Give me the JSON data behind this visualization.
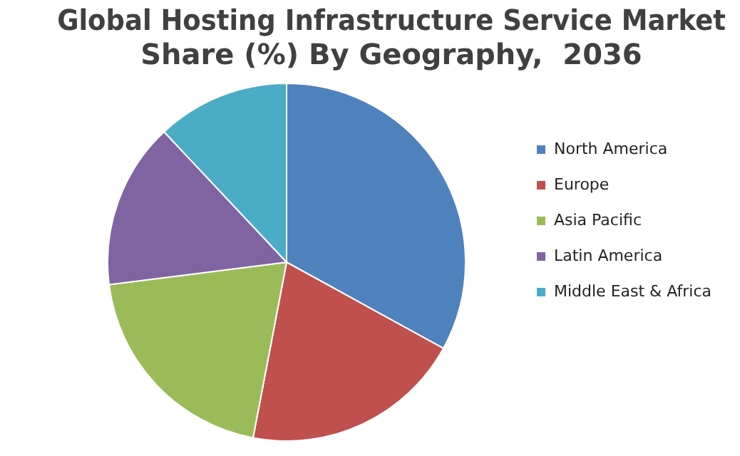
{
  "chart_data": {
    "type": "pie",
    "title": "Global Hosting Infrastructure Service Market Share (%) By Geography,  2036",
    "categories": [
      "North America",
      "Europe",
      "Asia Pacific",
      "Latin America",
      "Middle East & Africa"
    ],
    "values": [
      33,
      20,
      20,
      15,
      12
    ],
    "colors": [
      "#4f81bd",
      "#c0504d",
      "#9bbb59",
      "#8064a2",
      "#4bacc6"
    ],
    "legend": "right"
  }
}
